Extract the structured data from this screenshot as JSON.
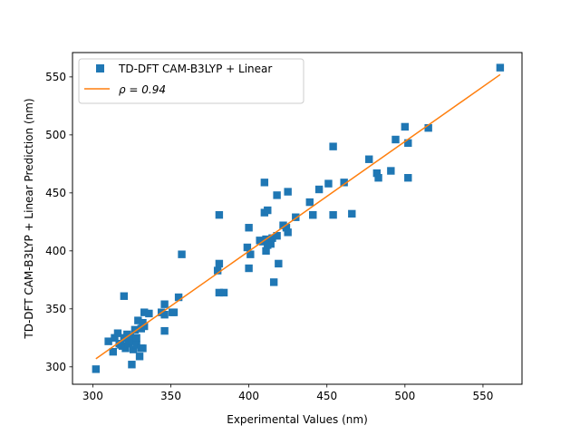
{
  "chart_data": {
    "type": "scatter",
    "title": "",
    "xlabel": "Experimental Values (nm)",
    "ylabel": "TD-DFT CAM-B3LYP + Linear Prediction (nm)",
    "xlim": [
      287,
      575
    ],
    "ylim": [
      285,
      571
    ],
    "xticks": [
      300,
      350,
      400,
      450,
      500,
      550
    ],
    "yticks": [
      300,
      350,
      400,
      450,
      500,
      550
    ],
    "grid": false,
    "legend_position": "top-left",
    "series": [
      {
        "name": "TD-DFT CAM-B3LYP + Linear",
        "kind": "scatter",
        "marker": "square",
        "color": "#1f77b4",
        "points": [
          [
            302,
            298
          ],
          [
            310,
            322
          ],
          [
            313,
            313
          ],
          [
            314,
            325
          ],
          [
            316,
            329
          ],
          [
            317,
            320
          ],
          [
            318,
            319
          ],
          [
            319,
            318
          ],
          [
            320,
            325
          ],
          [
            320,
            361
          ],
          [
            321,
            316
          ],
          [
            322,
            328
          ],
          [
            323,
            320
          ],
          [
            324,
            326
          ],
          [
            325,
            322
          ],
          [
            325,
            302
          ],
          [
            326,
            315
          ],
          [
            327,
            332
          ],
          [
            328,
            325
          ],
          [
            328,
            319
          ],
          [
            329,
            340
          ],
          [
            330,
            309
          ],
          [
            331,
            316
          ],
          [
            331,
            333
          ],
          [
            332,
            316
          ],
          [
            332,
            338
          ],
          [
            333,
            347
          ],
          [
            333,
            335
          ],
          [
            336,
            346
          ],
          [
            344,
            347
          ],
          [
            346,
            331
          ],
          [
            346,
            345
          ],
          [
            346,
            354
          ],
          [
            351,
            347
          ],
          [
            352,
            347
          ],
          [
            355,
            360
          ],
          [
            357,
            397
          ],
          [
            380,
            383
          ],
          [
            381,
            431
          ],
          [
            381,
            389
          ],
          [
            381,
            364
          ],
          [
            384,
            364
          ],
          [
            399,
            403
          ],
          [
            400,
            385
          ],
          [
            400,
            420
          ],
          [
            401,
            397
          ],
          [
            407,
            409
          ],
          [
            409,
            408
          ],
          [
            410,
            459
          ],
          [
            410,
            433
          ],
          [
            411,
            400
          ],
          [
            411,
            410
          ],
          [
            412,
            435
          ],
          [
            412,
            405
          ],
          [
            414,
            406
          ],
          [
            415,
            411
          ],
          [
            416,
            373
          ],
          [
            418,
            413
          ],
          [
            418,
            448
          ],
          [
            419,
            389
          ],
          [
            422,
            422
          ],
          [
            424,
            420
          ],
          [
            425,
            416
          ],
          [
            425,
            451
          ],
          [
            430,
            429
          ],
          [
            439,
            442
          ],
          [
            441,
            431
          ],
          [
            441,
            431
          ],
          [
            445,
            453
          ],
          [
            451,
            458
          ],
          [
            454,
            431
          ],
          [
            454,
            490
          ],
          [
            461,
            459
          ],
          [
            466,
            432
          ],
          [
            477,
            479
          ],
          [
            482,
            467
          ],
          [
            483,
            463
          ],
          [
            491,
            469
          ],
          [
            494,
            496
          ],
          [
            500,
            507
          ],
          [
            502,
            493
          ],
          [
            502,
            463
          ],
          [
            515,
            506
          ],
          [
            561,
            558
          ]
        ]
      },
      {
        "name": "ρ = 0.94",
        "kind": "line",
        "color": "#ff7f0e",
        "points": [
          [
            302,
            307
          ],
          [
            561,
            552
          ]
        ]
      }
    ]
  }
}
